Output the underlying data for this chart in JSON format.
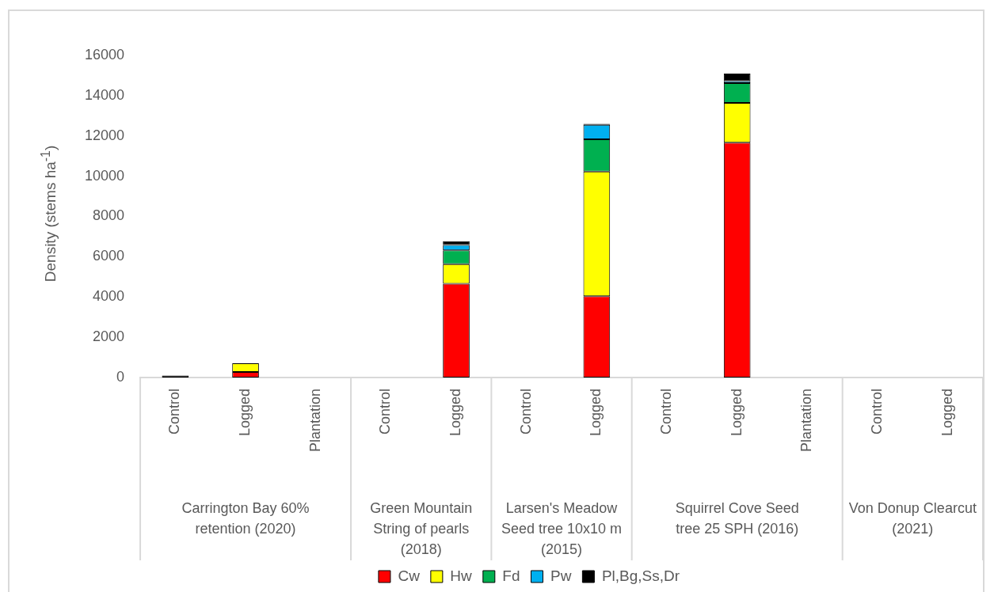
{
  "chart_data": {
    "type": "bar",
    "stacked": true,
    "ylabel": "Density (stems ha$^{-1}$)",
    "categories": [
      "Control",
      "Logged",
      "Plantation",
      "Control",
      "Logged",
      "Control",
      "Logged",
      "Control",
      "Logged",
      "Plantation",
      "Control",
      "Logged"
    ],
    "annotations": [
      "Carrington Bay 60% retention (2020)",
      "Green Mountain String of pearls (2018)",
      "Larsen's Meadow Seed tree 10x10 m (2015)",
      "Squirrel Cove Seed tree 25 SPH (2016)",
      "Von Donup Clearcut (2021)"
    ],
    "series": [
      {
        "name": "Cw",
        "color": "#ff0000",
        "values": [
          null,
          280,
          null,
          null,
          4660,
          null,
          4040,
          null,
          11670,
          null,
          null,
          null
        ]
      },
      {
        "name": "Hw",
        "color": "#ffff00",
        "values": [
          null,
          430,
          null,
          null,
          970,
          null,
          6190,
          null,
          1970,
          null,
          null,
          null
        ]
      },
      {
        "name": "Fd",
        "color": "#00b050",
        "values": [
          null,
          null,
          null,
          null,
          690,
          null,
          1600,
          null,
          980,
          null,
          null,
          null
        ]
      },
      {
        "name": "Pw",
        "color": "#00b0f0",
        "values": [
          null,
          null,
          null,
          null,
          260,
          null,
          720,
          null,
          100,
          null,
          null,
          null
        ]
      },
      {
        "name": "Pl,Bg,Ss,Dr",
        "color": "#000000",
        "values": [
          100,
          null,
          null,
          null,
          190,
          null,
          50,
          null,
          380,
          null,
          null,
          null
        ]
      }
    ],
    "ylim": [
      0,
      16000
    ],
    "yticks": [
      0,
      2000,
      4000,
      6000,
      8000,
      10000,
      12000,
      14000,
      16000
    ],
    "grid": false,
    "legend": "bottom"
  }
}
